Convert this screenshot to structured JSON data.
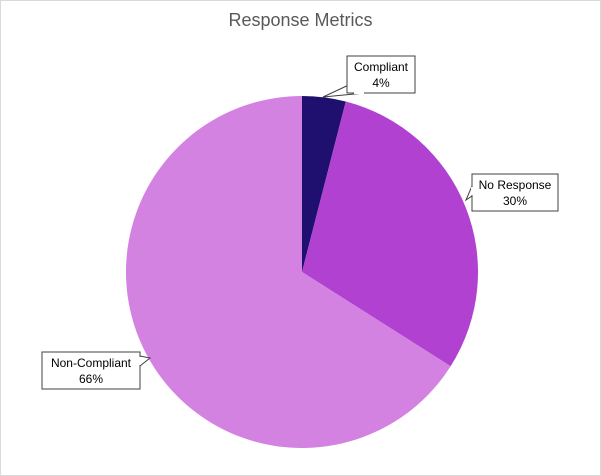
{
  "chart_data": {
    "type": "pie",
    "title": "Response Metrics",
    "slices": [
      {
        "label": "Compliant",
        "value": 4,
        "display": "4%",
        "color": "#1f0f6e"
      },
      {
        "label": "No Response",
        "value": 30,
        "display": "30%",
        "color": "#b041d1"
      },
      {
        "label": "Non-Compliant",
        "value": 66,
        "display": "66%",
        "color": "#d382e2"
      }
    ],
    "start_angle": "12 o'clock, clockwise",
    "legend": "none",
    "data_labels": "callouts with category name and percentage"
  }
}
